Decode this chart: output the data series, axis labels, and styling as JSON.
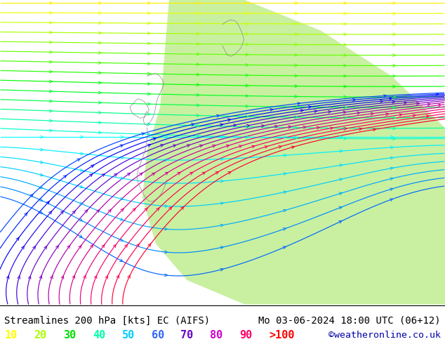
{
  "title_left": "Streamlines 200 hPa [kts] EC (AIFS)",
  "title_right": "Mo 03-06-2024 18:00 UTC (06+12)",
  "credit": "©weatheronline.co.uk",
  "legend_values": [
    "10",
    "20",
    "30",
    "40",
    "50",
    "60",
    "70",
    "80",
    "90",
    ">100"
  ],
  "legend_colors": [
    "#ffff00",
    "#aaff00",
    "#00dd00",
    "#00ffaa",
    "#00ccff",
    "#3366ff",
    "#6600cc",
    "#cc00cc",
    "#ff0066",
    "#ff0000"
  ],
  "bg_color": "#d0d0d0",
  "green_light": "#c8f0a0",
  "green_dark": "#90d050",
  "title_fontsize": 10.5,
  "credit_color": "#0000aa",
  "figsize": [
    6.34,
    4.9
  ],
  "dpi": 100,
  "streamline_colors": [
    "#ffee00",
    "#eeff00",
    "#ccff00",
    "#aaff00",
    "#88ff00",
    "#66ff00",
    "#44ff00",
    "#22ff00",
    "#00ff00",
    "#00ff22",
    "#00ff44",
    "#00ff88",
    "#00ffaa",
    "#00ffcc",
    "#00ffff",
    "#00eeff",
    "#00ddff",
    "#00ccff",
    "#00aaff",
    "#0088ff",
    "#0066ff",
    "#0044ff",
    "#0022ff",
    "#0000ff",
    "#2200ee",
    "#4400dd",
    "#6600cc",
    "#8800bb",
    "#aa00aa",
    "#cc0099",
    "#dd0088",
    "#ee0077",
    "#ff0066",
    "#ff0055",
    "#ff0044",
    "#ff0033"
  ]
}
